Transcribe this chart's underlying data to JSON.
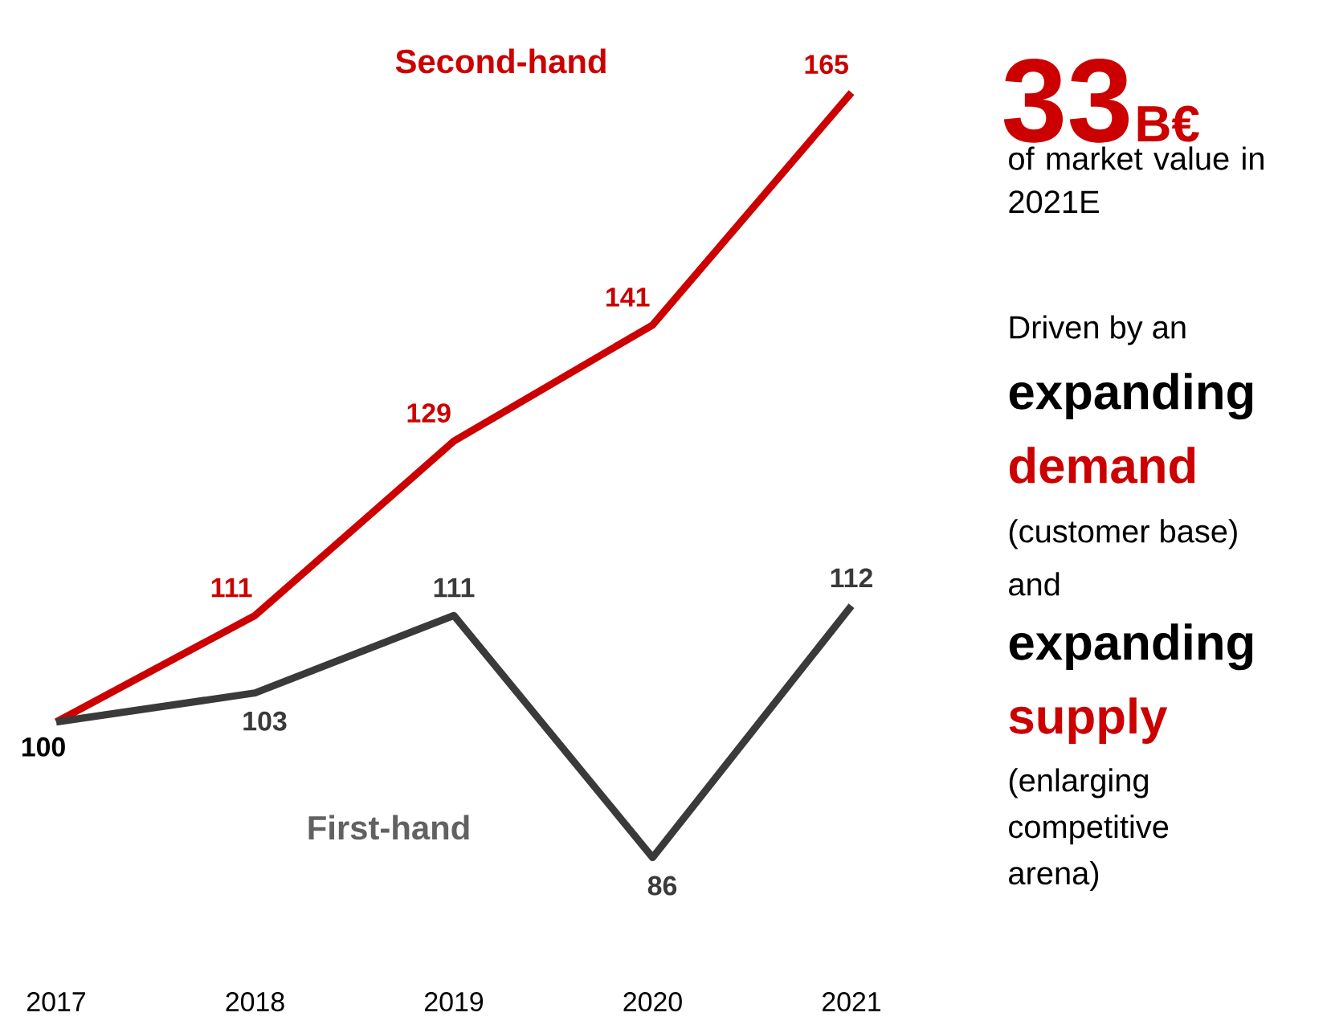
{
  "chart_data": {
    "type": "line",
    "categories": [
      "2017",
      "2018",
      "2019",
      "2020",
      "2021"
    ],
    "series": [
      {
        "name": "Second-hand",
        "color": "#cc0000",
        "values": [
          100,
          111,
          129,
          141,
          165
        ],
        "value_labels": [
          null,
          "111",
          "129",
          "141",
          "165"
        ]
      },
      {
        "name": "First-hand",
        "color": "#3a3a3a",
        "values": [
          100,
          103,
          111,
          86,
          112
        ],
        "value_labels": [
          null,
          "103",
          "111",
          "86",
          "112"
        ]
      }
    ],
    "annotations": [
      "33",
      "B€",
      "of market value in 2021E",
      "Driven by an",
      "expanding",
      "demand",
      "(customer base)",
      "and",
      "expanding",
      "supply",
      "(enlarging competitive arena)",
      {
        "text": "100",
        "x": "2017",
        "y": 100
      }
    ],
    "grid": false,
    "marker": "none",
    "line_style": "solid"
  }
}
